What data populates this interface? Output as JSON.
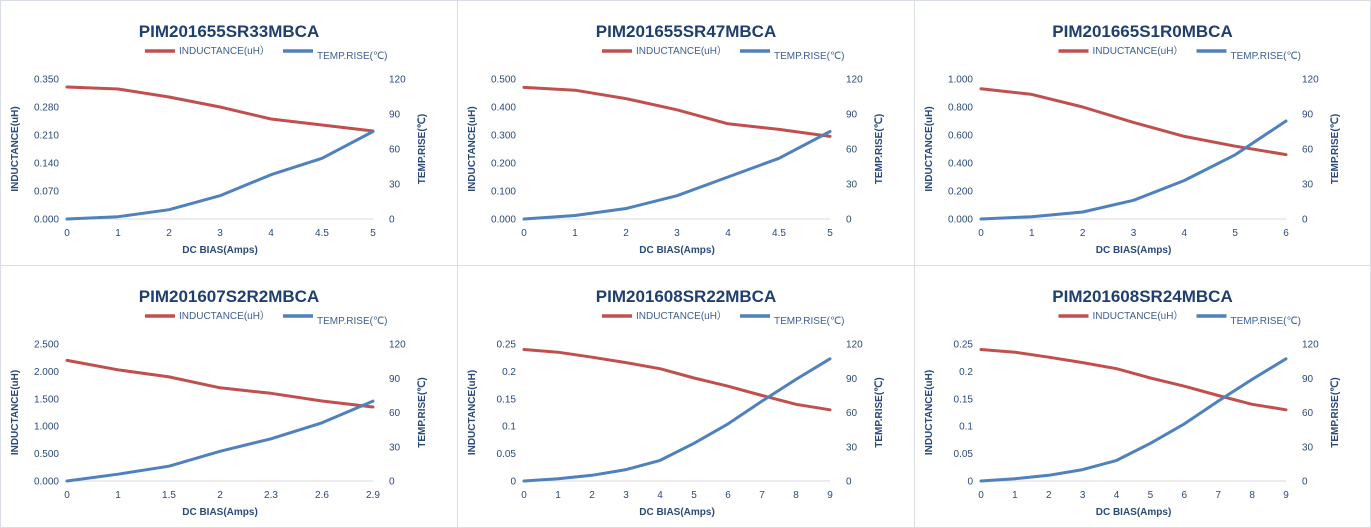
{
  "colors": {
    "inductance": "#c0504d",
    "temp": "#4f81bd",
    "text": "#1f3f6e",
    "border": "#d9dde6"
  },
  "chart_data": [
    {
      "type": "line",
      "title": "PIM201655SR33MBCA",
      "xlabel": "DC BIAS(Amps)",
      "ylabel": "INDUCTANCE(uH)",
      "y2label": "TEMP.RISE(℃)",
      "categories": [
        "0",
        "1",
        "2",
        "3",
        "4",
        "4.5",
        "5"
      ],
      "x_tick_labels": [
        "0",
        "1",
        "2",
        "3",
        "4",
        "4.5",
        "5"
      ],
      "ylim": [
        0,
        0.35
      ],
      "y_ticks": [
        "0.000",
        "0.070",
        "0.140",
        "0.210",
        "0.280",
        "0.350"
      ],
      "y2lim": [
        0,
        120
      ],
      "y2_ticks": [
        "0",
        "30",
        "60",
        "90",
        "120"
      ],
      "legend": "top-center",
      "series": [
        {
          "name": "INDUCTANCE(uH）",
          "axis": "left",
          "values": [
            0.33,
            0.325,
            0.305,
            0.28,
            0.25,
            0.235,
            0.22
          ]
        },
        {
          "name": "TEMP.RISE(℃)",
          "axis": "right",
          "values": [
            0,
            2,
            8,
            20,
            38,
            52,
            75
          ]
        }
      ]
    },
    {
      "type": "line",
      "title": "PIM201655SR47MBCA",
      "xlabel": "DC BIAS(Amps)",
      "ylabel": "INDUCTANCE(uH)",
      "y2label": "TEMP.RISE(℃)",
      "categories": [
        "0",
        "1",
        "2",
        "3",
        "4",
        "4.5",
        "5"
      ],
      "x_tick_labels": [
        "0",
        "1",
        "2",
        "3",
        "4",
        "4.5",
        "5"
      ],
      "ylim": [
        0,
        0.5
      ],
      "y_ticks": [
        "0.000",
        "0.100",
        "0.200",
        "0.300",
        "0.400",
        "0.500"
      ],
      "y2lim": [
        0,
        120
      ],
      "y2_ticks": [
        "0",
        "30",
        "60",
        "90",
        "120"
      ],
      "legend": "top-center",
      "series": [
        {
          "name": "INDUCTANCE(uH）",
          "axis": "left",
          "values": [
            0.47,
            0.46,
            0.43,
            0.39,
            0.34,
            0.32,
            0.295
          ]
        },
        {
          "name": "TEMP.RISE(℃)",
          "axis": "right",
          "values": [
            0,
            3,
            9,
            20,
            36,
            52,
            75
          ]
        }
      ]
    },
    {
      "type": "line",
      "title": "PIM201665S1R0MBCA",
      "xlabel": "DC BIAS(Amps)",
      "ylabel": "INDUCTANCE(uH)",
      "y2label": "TEMP.RISE(℃)",
      "categories": [
        "0",
        "1",
        "2",
        "3",
        "4",
        "5",
        "6"
      ],
      "x_tick_labels": [
        "0",
        "1",
        "2",
        "3",
        "4",
        "5",
        "6"
      ],
      "ylim": [
        0,
        1.0
      ],
      "y_ticks": [
        "0.000",
        "0.200",
        "0.400",
        "0.600",
        "0.800",
        "1.000"
      ],
      "y2lim": [
        0,
        120
      ],
      "y2_ticks": [
        "0",
        "30",
        "60",
        "90",
        "120"
      ],
      "legend": "top-center",
      "series": [
        {
          "name": "INDUCTANCE(uH）",
          "axis": "left",
          "values": [
            0.93,
            0.89,
            0.8,
            0.69,
            0.59,
            0.52,
            0.46
          ]
        },
        {
          "name": "TEMP.RISE(℃)",
          "axis": "right",
          "values": [
            0,
            2,
            6,
            16,
            33,
            55,
            84
          ]
        }
      ]
    },
    {
      "type": "line",
      "title": "PIM201607S2R2MBCA",
      "xlabel": "DC BIAS(Amps)",
      "ylabel": "INDUCTANCE(uH)",
      "y2label": "TEMP.RISE(℃)",
      "categories": [
        "0",
        "1",
        "1.5",
        "2",
        "2.3",
        "2.6",
        "2.9"
      ],
      "x_tick_labels": [
        "0",
        "1",
        "1.5",
        "2",
        "2.3",
        "2.6",
        "2.9"
      ],
      "ylim": [
        0,
        2.5
      ],
      "y_ticks": [
        "0.000",
        "0.500",
        "1.000",
        "1.500",
        "2.000",
        "2.500"
      ],
      "y2lim": [
        0,
        120
      ],
      "y2_ticks": [
        "0",
        "30",
        "60",
        "90",
        "120"
      ],
      "legend": "top-center",
      "series": [
        {
          "name": "INDUCTANCE(uH）",
          "axis": "left",
          "values": [
            2.2,
            2.03,
            1.9,
            1.7,
            1.6,
            1.46,
            1.35
          ]
        },
        {
          "name": "TEMP.RISE(℃)",
          "axis": "right",
          "values": [
            0,
            6,
            13,
            26,
            37,
            51,
            70
          ]
        }
      ]
    },
    {
      "type": "line",
      "title": "PIM201608SR22MBCA",
      "xlabel": "DC BIAS(Amps)",
      "ylabel": "INDUCTANCE(uH)",
      "y2label": "TEMP.RISE(℃)",
      "categories": [
        "0",
        "1",
        "2",
        "3",
        "4",
        "5",
        "6",
        "7",
        "8",
        "9"
      ],
      "x_tick_labels": [
        "0",
        "1",
        "2",
        "3",
        "4",
        "5",
        "6",
        "7",
        "8",
        "9"
      ],
      "ylim": [
        0,
        0.25
      ],
      "y_ticks": [
        "0",
        "0.05",
        "0.1",
        "0.15",
        "0.2",
        "0.25"
      ],
      "y2lim": [
        0,
        120
      ],
      "y2_ticks": [
        "0",
        "30",
        "60",
        "90",
        "120"
      ],
      "legend": "top-center",
      "series": [
        {
          "name": "INDUCTANCE(uH）",
          "axis": "left",
          "values": [
            0.24,
            0.235,
            0.226,
            0.216,
            0.205,
            0.188,
            0.173,
            0.156,
            0.14,
            0.13
          ]
        },
        {
          "name": "TEMP.RISE(℃)",
          "axis": "right",
          "values": [
            0,
            2,
            5,
            10,
            18,
            33,
            50,
            70,
            89,
            107
          ]
        }
      ]
    },
    {
      "type": "line",
      "title": "PIM201608SR24MBCA",
      "xlabel": "DC BIAS(Amps)",
      "ylabel": "INDUCTANCE(uH)",
      "y2label": "TEMP.RISE(℃)",
      "categories": [
        "0",
        "1",
        "2",
        "3",
        "4",
        "5",
        "6",
        "7",
        "8",
        "9"
      ],
      "x_tick_labels": [
        "0",
        "1",
        "2",
        "3",
        "4",
        "5",
        "6",
        "7",
        "8",
        "9"
      ],
      "ylim": [
        0,
        0.25
      ],
      "y_ticks": [
        "0",
        "0.05",
        "0.1",
        "0.15",
        "0.2",
        "0.25"
      ],
      "y2lim": [
        0,
        120
      ],
      "y2_ticks": [
        "0",
        "30",
        "60",
        "90",
        "120"
      ],
      "legend": "top-center",
      "series": [
        {
          "name": "INDUCTANCE(uH）",
          "axis": "left",
          "values": [
            0.24,
            0.235,
            0.226,
            0.216,
            0.205,
            0.188,
            0.173,
            0.156,
            0.14,
            0.13
          ]
        },
        {
          "name": "TEMP.RISE(℃)",
          "axis": "right",
          "values": [
            0,
            2,
            5,
            10,
            18,
            33,
            50,
            70,
            89,
            107
          ]
        }
      ]
    }
  ]
}
